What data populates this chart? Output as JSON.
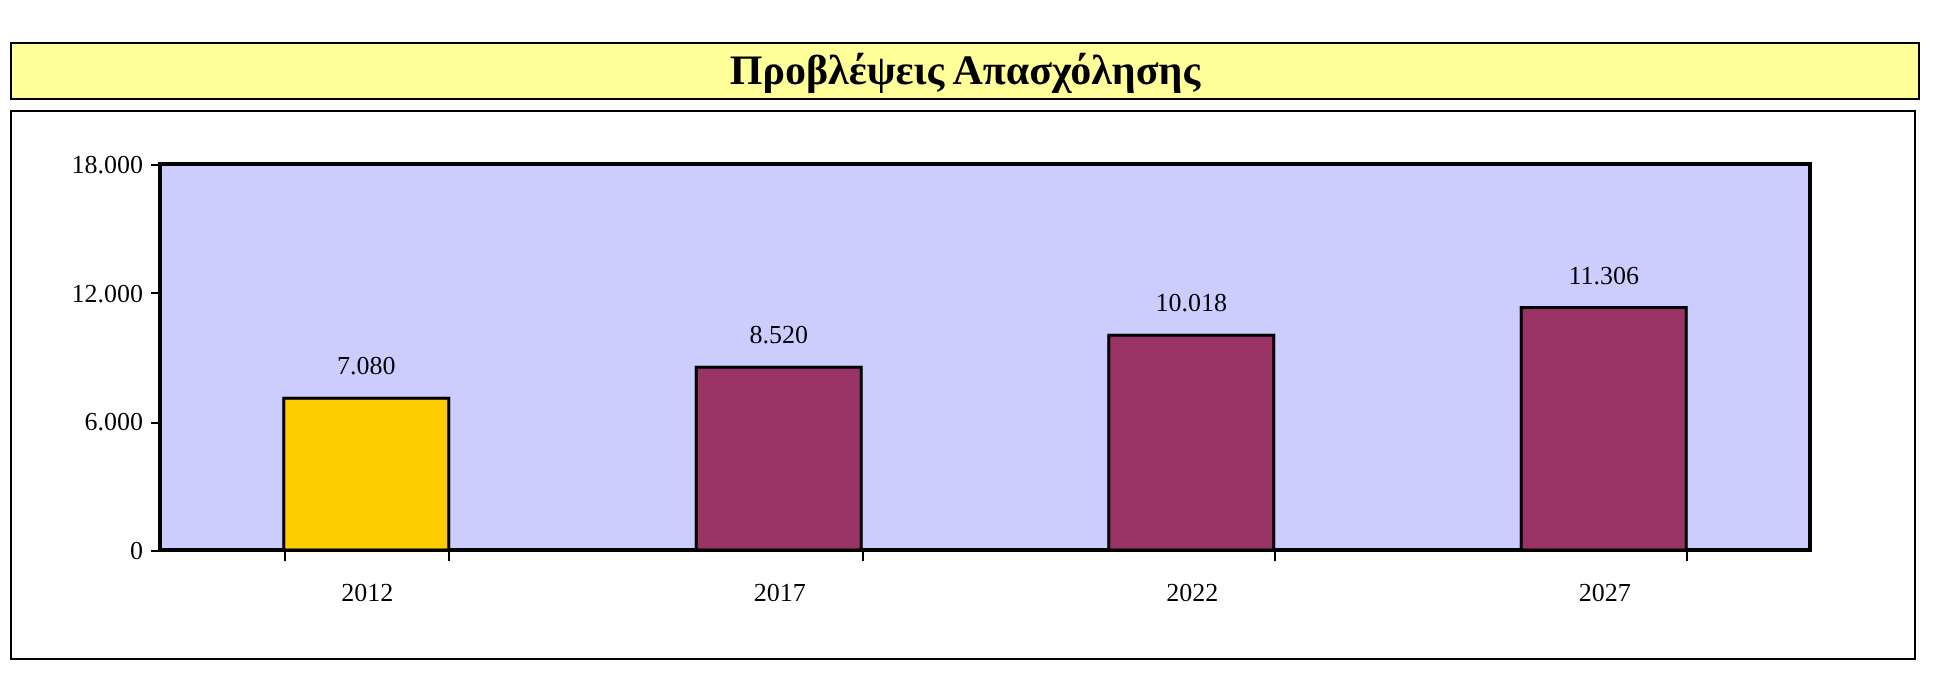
{
  "chart_data": {
    "type": "bar",
    "title": "Προβλέψεις Απασχόλησης",
    "categories": [
      "2012",
      "2017",
      "2022",
      "2027"
    ],
    "values": [
      7080,
      8520,
      10018,
      11306
    ],
    "colors": [
      "#ffcc00",
      "#993366",
      "#993366",
      "#993366"
    ],
    "value_labels": [
      "7.080",
      "8.520",
      "10.018",
      "11.306"
    ],
    "ylim": [
      0,
      18000
    ],
    "yticks": [
      {
        "value": 0,
        "label": "0"
      },
      {
        "value": 6000,
        "label": "6.000"
      },
      {
        "value": 12000,
        "label": "12.000"
      },
      {
        "value": 18000,
        "label": "18.000"
      }
    ],
    "grid": false
  }
}
